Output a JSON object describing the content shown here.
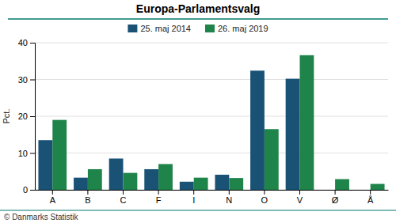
{
  "chart_data": {
    "type": "bar",
    "title": "Europa-Parlamentsvalg",
    "categories": [
      "A",
      "B",
      "C",
      "F",
      "I",
      "N",
      "O",
      "V",
      "Ø",
      "Å"
    ],
    "series": [
      {
        "name": "25. maj 2014",
        "color": "#1a5276",
        "values": [
          13.5,
          3.3,
          8.5,
          5.6,
          2.2,
          4.1,
          32.4,
          30.2,
          0.0,
          0.0
        ]
      },
      {
        "name": "26. maj 2019",
        "color": "#1e8449",
        "values": [
          19.0,
          5.6,
          4.6,
          7.0,
          3.3,
          3.2,
          16.5,
          36.6,
          2.9,
          1.6
        ]
      }
    ],
    "ylabel": "Pct.",
    "ylim": [
      0,
      40
    ],
    "yticks": [
      0,
      10,
      20,
      30,
      40
    ],
    "grid": true,
    "legend": "top",
    "annotations": [
      "© Danmarks Statistik"
    ]
  }
}
